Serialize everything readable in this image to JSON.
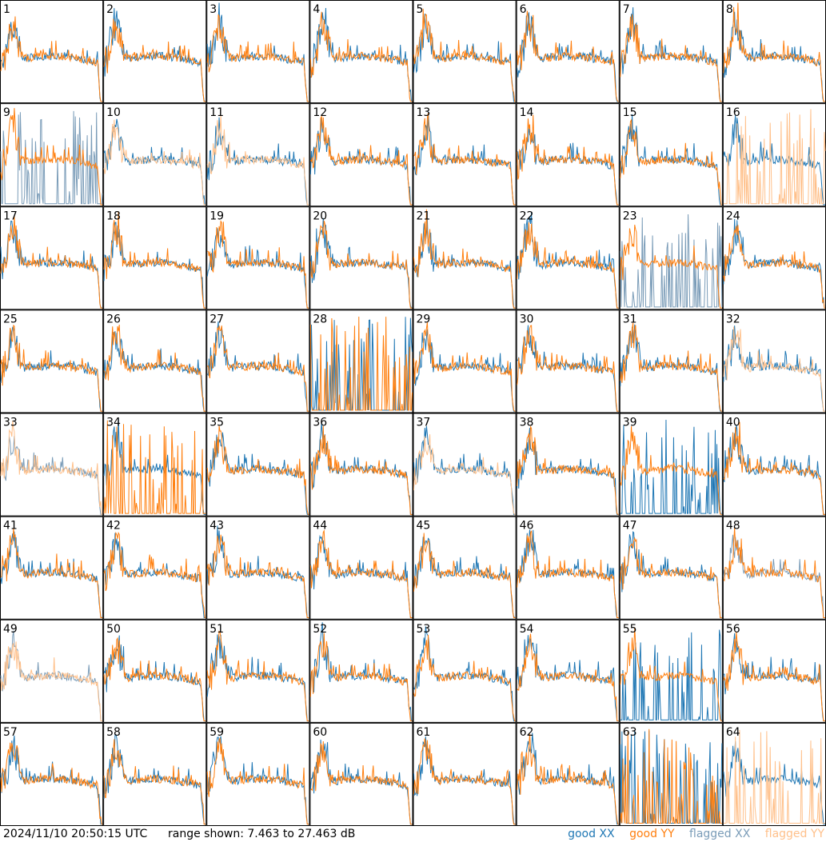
{
  "chart_data": {
    "type": "line",
    "description_grid": "8x8 small multiples, one per input (1-64), showing XX and YY power spectra",
    "panels": [
      {
        "id": 1,
        "xx": "good",
        "yy": "good"
      },
      {
        "id": 2,
        "xx": "good",
        "yy": "good"
      },
      {
        "id": 3,
        "xx": "good",
        "yy": "good"
      },
      {
        "id": 4,
        "xx": "good",
        "yy": "good"
      },
      {
        "id": 5,
        "xx": "good",
        "yy": "good"
      },
      {
        "id": 6,
        "xx": "good",
        "yy": "good"
      },
      {
        "id": 7,
        "xx": "good",
        "yy": "good"
      },
      {
        "id": 8,
        "xx": "good",
        "yy": "good"
      },
      {
        "id": 9,
        "xx": "flagged",
        "yy": "good"
      },
      {
        "id": 10,
        "xx": "good",
        "yy": "flagged"
      },
      {
        "id": 11,
        "xx": "good",
        "yy": "flagged"
      },
      {
        "id": 12,
        "xx": "good",
        "yy": "good"
      },
      {
        "id": 13,
        "xx": "good",
        "yy": "good"
      },
      {
        "id": 14,
        "xx": "good",
        "yy": "good"
      },
      {
        "id": 15,
        "xx": "good",
        "yy": "good"
      },
      {
        "id": 16,
        "xx": "good",
        "yy": "flagged"
      },
      {
        "id": 17,
        "xx": "good",
        "yy": "good"
      },
      {
        "id": 18,
        "xx": "good",
        "yy": "good"
      },
      {
        "id": 19,
        "xx": "good",
        "yy": "good"
      },
      {
        "id": 20,
        "xx": "good",
        "yy": "good"
      },
      {
        "id": 21,
        "xx": "good",
        "yy": "good"
      },
      {
        "id": 22,
        "xx": "good",
        "yy": "good"
      },
      {
        "id": 23,
        "xx": "flagged",
        "yy": "good"
      },
      {
        "id": 24,
        "xx": "good",
        "yy": "good"
      },
      {
        "id": 25,
        "xx": "good",
        "yy": "good"
      },
      {
        "id": 26,
        "xx": "good",
        "yy": "good"
      },
      {
        "id": 27,
        "xx": "good",
        "yy": "good"
      },
      {
        "id": 28,
        "xx": "good",
        "yy": "good"
      },
      {
        "id": 29,
        "xx": "good",
        "yy": "good"
      },
      {
        "id": 30,
        "xx": "good",
        "yy": "good"
      },
      {
        "id": 31,
        "xx": "good",
        "yy": "good"
      },
      {
        "id": 32,
        "xx": "good",
        "yy": "flagged"
      },
      {
        "id": 33,
        "xx": "flagged",
        "yy": "flagged"
      },
      {
        "id": 34,
        "xx": "good",
        "yy": "good"
      },
      {
        "id": 35,
        "xx": "good",
        "yy": "good"
      },
      {
        "id": 36,
        "xx": "good",
        "yy": "good"
      },
      {
        "id": 37,
        "xx": "good",
        "yy": "flagged"
      },
      {
        "id": 38,
        "xx": "good",
        "yy": "good"
      },
      {
        "id": 39,
        "xx": "good",
        "yy": "good"
      },
      {
        "id": 40,
        "xx": "good",
        "yy": "good"
      },
      {
        "id": 41,
        "xx": "good",
        "yy": "good"
      },
      {
        "id": 42,
        "xx": "good",
        "yy": "good"
      },
      {
        "id": 43,
        "xx": "good",
        "yy": "good"
      },
      {
        "id": 44,
        "xx": "good",
        "yy": "good"
      },
      {
        "id": 45,
        "xx": "good",
        "yy": "good"
      },
      {
        "id": 46,
        "xx": "good",
        "yy": "good"
      },
      {
        "id": 47,
        "xx": "good",
        "yy": "good"
      },
      {
        "id": 48,
        "xx": "flagged",
        "yy": "good"
      },
      {
        "id": 49,
        "xx": "flagged",
        "yy": "flagged"
      },
      {
        "id": 50,
        "xx": "good",
        "yy": "good"
      },
      {
        "id": 51,
        "xx": "good",
        "yy": "good"
      },
      {
        "id": 52,
        "xx": "good",
        "yy": "good"
      },
      {
        "id": 53,
        "xx": "good",
        "yy": "good"
      },
      {
        "id": 54,
        "xx": "good",
        "yy": "good"
      },
      {
        "id": 55,
        "xx": "good",
        "yy": "good"
      },
      {
        "id": 56,
        "xx": "good",
        "yy": "good"
      },
      {
        "id": 57,
        "xx": "good",
        "yy": "good"
      },
      {
        "id": 58,
        "xx": "good",
        "yy": "good"
      },
      {
        "id": 59,
        "xx": "good",
        "yy": "good"
      },
      {
        "id": 60,
        "xx": "good",
        "yy": "good"
      },
      {
        "id": 61,
        "xx": "good",
        "yy": "good"
      },
      {
        "id": 62,
        "xx": "good",
        "yy": "good"
      },
      {
        "id": 63,
        "xx": "good",
        "yy": "good"
      },
      {
        "id": 64,
        "xx": "good",
        "yy": "flagged"
      }
    ],
    "ylim_db": [
      7.463,
      27.463
    ],
    "grid": false,
    "legend_placement": "bottom-right"
  },
  "footer": {
    "timestamp": "2024/11/10 20:50:15 UTC",
    "range": "range shown: 7.463 to 27.463 dB"
  },
  "legend": {
    "good_xx": "good XX",
    "good_yy": "good YY",
    "flagged_xx": "flagged XX",
    "flagged_yy": "flagged YY"
  },
  "colors": {
    "good_xx": "#1f77b4",
    "good_yy": "#ff7f0e",
    "flagged_xx": "#7a9cb8",
    "flagged_yy": "#ffc08a",
    "border": "#000000"
  }
}
